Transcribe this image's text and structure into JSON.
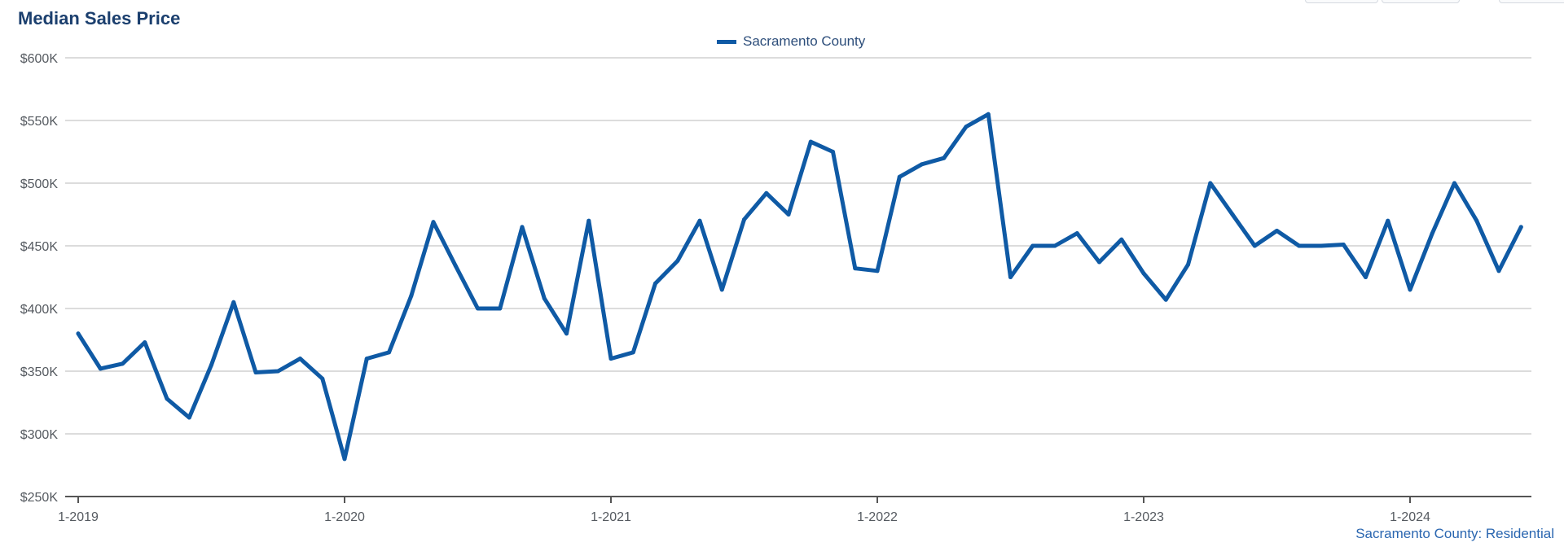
{
  "title": "Median Sales Price",
  "legend": {
    "label": "Sacramento County"
  },
  "caption": "Sacramento County: Residential",
  "colors": {
    "series": "#0f5aa5",
    "grid": "#c6c6c6",
    "axis": "#555555",
    "title": "#1b3f6e"
  },
  "chart_data": {
    "type": "line",
    "title": "Median Sales Price",
    "xlabel": "",
    "ylabel": "",
    "ylim": [
      250000,
      600000
    ],
    "yticks": [
      250000,
      300000,
      350000,
      400000,
      450000,
      500000,
      550000,
      600000
    ],
    "ytick_labels": [
      "$250K",
      "$300K",
      "$350K",
      "$400K",
      "$450K",
      "$500K",
      "$550K",
      "$600K"
    ],
    "xticks": [
      "2019-01",
      "2020-01",
      "2021-01",
      "2022-01",
      "2023-01",
      "2024-01"
    ],
    "xtick_labels": [
      "1-2019",
      "1-2020",
      "1-2021",
      "1-2022",
      "1-2023",
      "1-2024"
    ],
    "x_range": [
      "2019-01",
      "2024-06"
    ],
    "grid": true,
    "legend_position": "top-center",
    "series": [
      {
        "name": "Sacramento County",
        "x": [
          "2019-01",
          "2019-02",
          "2019-03",
          "2019-04",
          "2019-05",
          "2019-06",
          "2019-07",
          "2019-08",
          "2019-09",
          "2019-10",
          "2019-11",
          "2019-12",
          "2020-01",
          "2020-02",
          "2020-03",
          "2020-04",
          "2020-05",
          "2020-06",
          "2020-07",
          "2020-08",
          "2020-09",
          "2020-10",
          "2020-11",
          "2020-12",
          "2021-01",
          "2021-02",
          "2021-03",
          "2021-04",
          "2021-05",
          "2021-06",
          "2021-07",
          "2021-08",
          "2021-09",
          "2021-10",
          "2021-11",
          "2021-12",
          "2022-01",
          "2022-02",
          "2022-03",
          "2022-04",
          "2022-05",
          "2022-06",
          "2022-07",
          "2022-08",
          "2022-09",
          "2022-10",
          "2022-11",
          "2022-12",
          "2023-01",
          "2023-02",
          "2023-03",
          "2023-04",
          "2023-05",
          "2023-06",
          "2023-07",
          "2023-08",
          "2023-09",
          "2023-10",
          "2023-11",
          "2023-12",
          "2024-01",
          "2024-02",
          "2024-03",
          "2024-04",
          "2024-05",
          "2024-06"
        ],
        "values": [
          380000,
          352000,
          356000,
          373000,
          328000,
          313000,
          355000,
          405000,
          349000,
          350000,
          360000,
          344000,
          280000,
          360000,
          365000,
          410000,
          469000,
          434000,
          400000,
          400000,
          465000,
          408000,
          380000,
          470000,
          360000,
          365000,
          420000,
          438000,
          470000,
          415000,
          471000,
          492000,
          475000,
          533000,
          525000,
          432000,
          430000,
          505000,
          515000,
          520000,
          545000,
          555000,
          425000,
          450000,
          450000,
          460000,
          437000,
          455000,
          428000,
          407000,
          435000,
          500000,
          475000,
          450000,
          462000,
          450000,
          450000,
          451000,
          425000,
          470000,
          415000,
          460000,
          500000,
          470000,
          430000,
          465000
        ]
      }
    ]
  }
}
